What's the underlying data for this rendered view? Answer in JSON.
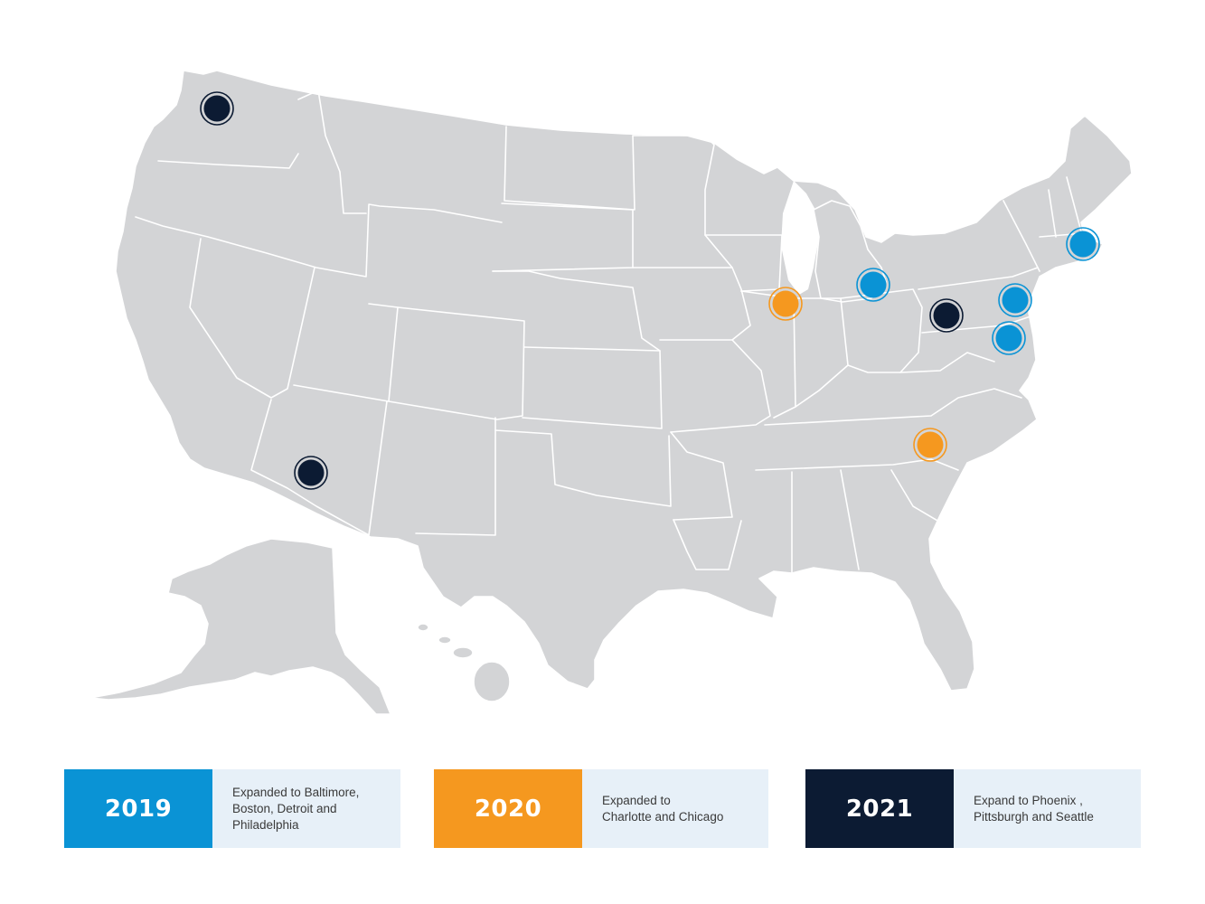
{
  "colors": {
    "year_2019": "#0a93d5",
    "year_2020": "#f5981f",
    "year_2021": "#0c1b33",
    "land": "#d3d4d6",
    "legend_bg": "#e7f0f8"
  },
  "markers": [
    {
      "city": "Seattle",
      "group": "year_2021"
    },
    {
      "city": "Phoenix",
      "group": "year_2021"
    },
    {
      "city": "Chicago",
      "group": "year_2020"
    },
    {
      "city": "Charlotte",
      "group": "year_2020"
    },
    {
      "city": "Detroit",
      "group": "year_2019"
    },
    {
      "city": "Pittsburgh",
      "group": "year_2021"
    },
    {
      "city": "Philadelphia",
      "group": "year_2019"
    },
    {
      "city": "Baltimore",
      "group": "year_2019"
    },
    {
      "city": "Boston",
      "group": "year_2019"
    }
  ],
  "legend": [
    {
      "year": "2019",
      "text": "Expanded to Baltimore,\nBoston, Detroit and\nPhiladelphia"
    },
    {
      "year": "2020",
      "text": "Expanded to\nCharlotte and Chicago"
    },
    {
      "year": "2021",
      "text": "Expand to Phoenix ,\nPittsburgh and Seattle"
    }
  ]
}
